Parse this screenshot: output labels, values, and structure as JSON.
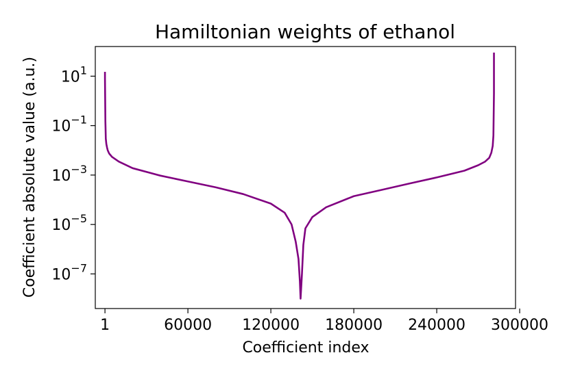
{
  "chart_data": {
    "type": "line",
    "title": "Hamiltonian weights of ethanol",
    "xlabel": "Coefficient index",
    "ylabel": "Coefficient absolute value (a.u.)",
    "xlim": [
      -7000,
      297000
    ],
    "ylog": true,
    "ylim_exp": [
      -8.4,
      2.2
    ],
    "x_ticks": [
      {
        "value": 1,
        "label": "1"
      },
      {
        "value": 60000,
        "label": "60000"
      },
      {
        "value": 120000,
        "label": "120000"
      },
      {
        "value": 180000,
        "label": "180000"
      },
      {
        "value": 240000,
        "label": "240000"
      },
      {
        "value": 300000,
        "label": "300000"
      }
    ],
    "y_ticks": [
      {
        "exp": 1,
        "base": "10",
        "sup": "1"
      },
      {
        "exp": -1,
        "base": "10",
        "sup": "−1"
      },
      {
        "exp": -3,
        "base": "10",
        "sup": "−3"
      },
      {
        "exp": -5,
        "base": "10",
        "sup": "−5"
      },
      {
        "exp": -7,
        "base": "10",
        "sup": "−7"
      }
    ],
    "grid": false,
    "series": [
      {
        "color": "#800080",
        "x": [
          1,
          1,
          300,
          400,
          600,
          1000,
          1500,
          2000,
          3000,
          5000,
          10000,
          20000,
          40000,
          60000,
          80000,
          100000,
          120000,
          130000,
          135000,
          138000,
          140000,
          141000,
          141500,
          142500,
          143500,
          145000,
          150000,
          160000,
          180000,
          200000,
          220000,
          240000,
          260000,
          270000,
          275000,
          278000,
          279500,
          280500,
          281000,
          281400,
          281400
        ],
        "y": [
          15,
          8,
          0.15,
          0.09,
          0.03,
          0.018,
          0.013,
          0.01,
          0.0075,
          0.0055,
          0.0035,
          0.0019,
          0.00095,
          0.00055,
          0.00032,
          0.00017,
          7e-05,
          3e-05,
          1e-05,
          2e-06,
          4e-07,
          5e-08,
          1e-08,
          1e-07,
          1.5e-06,
          7e-06,
          2e-05,
          5e-05,
          0.00014,
          0.00025,
          0.00045,
          0.0008,
          0.0015,
          0.0025,
          0.0035,
          0.005,
          0.008,
          0.015,
          0.04,
          2,
          90
        ]
      }
    ]
  }
}
